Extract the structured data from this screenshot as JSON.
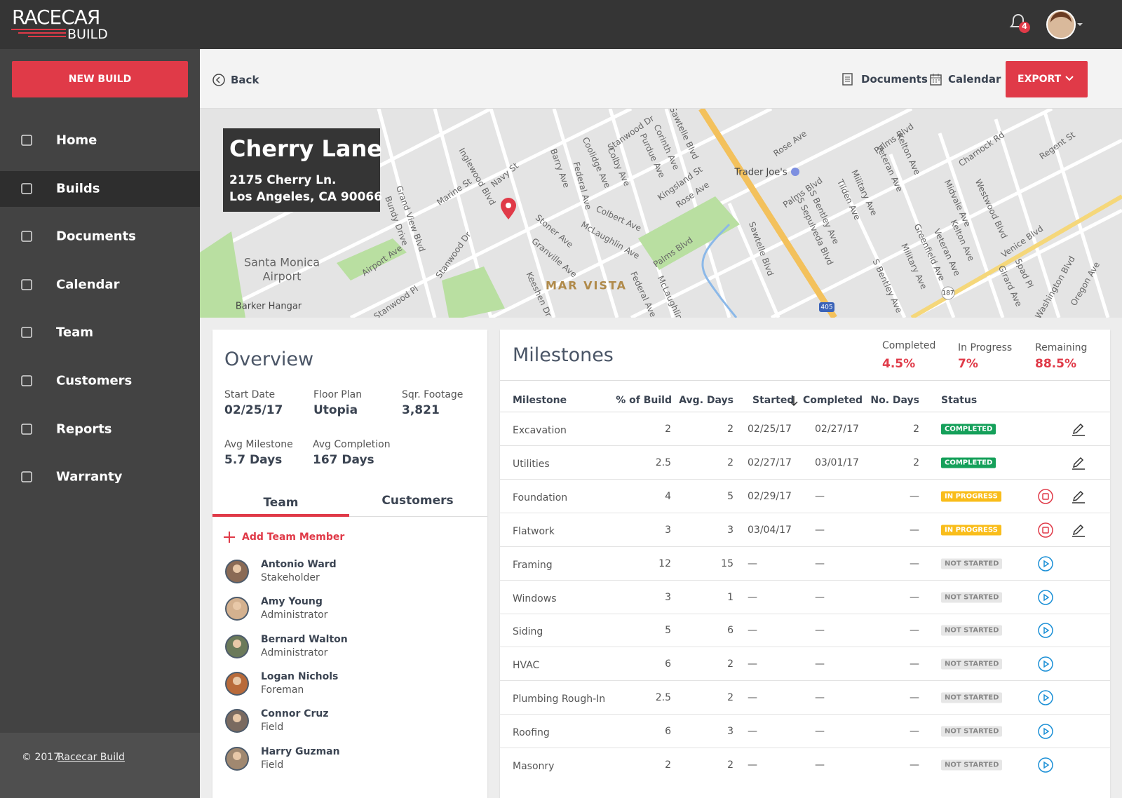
{
  "header": {
    "logo_top": "RACECAЯ",
    "logo_bottom": "BUILD",
    "notification_count": 4
  },
  "sidebar": {
    "new_build": "NEW BUILD",
    "nav": [
      {
        "label": "Home"
      },
      {
        "label": "Builds",
        "active": true
      },
      {
        "label": "Documents"
      },
      {
        "label": "Calendar"
      },
      {
        "label": "Team"
      },
      {
        "label": "Customers"
      },
      {
        "label": "Reports"
      },
      {
        "label": "Warranty"
      }
    ],
    "footer": {
      "copyright": "© 2017",
      "link": "Racecar Build"
    }
  },
  "toolbar": {
    "back": "Back",
    "documents": "Documents",
    "calendar": "Calendar",
    "export": "EXPORT"
  },
  "map": {
    "labels": [
      "Santa Monica",
      "Airport",
      "Barker Hangar",
      "MAR VISTA",
      "Trader Joe's",
      "Grand View Blvd",
      "Bundy Drive",
      "Marine St",
      "Inglewood Blvd",
      "Navy St",
      "Airport Ave",
      "Stanwood Dr",
      "Stoner Ave",
      "Granville Ave",
      "McLaughlin Ave",
      "Colbert Ave",
      "Federal Ave",
      "Barry Ave",
      "Coolidge Ave",
      "Colby Ave",
      "Purdue Ave",
      "Kingsland St",
      "Rose Ave",
      "Rose Ave",
      "Palms Blvd",
      "Sawtelle Blvd",
      "S Sepulveda Blvd",
      "S Bentley Ave",
      "Tilden Ave",
      "Military Ave",
      "Palms Blvd",
      "Palms Blvd",
      "Veteran Ave",
      "Kelton Ave",
      "Charnock Rd",
      "Regent St",
      "Midvale Ave",
      "Westwood Blvd",
      "Kelton Ave",
      "Veteran Ave",
      "Greenfield Ave",
      "Military Ave",
      "Venice Blvd",
      "S Bentley Ave",
      "Spad Pl",
      "Girard Ave",
      "Washington Blvd",
      "Oregon Ave",
      "Stanwood Pl",
      "Keeshen Dr",
      "Federal Ave",
      "McLaughlin",
      "Corinth Ave",
      "Sawtelle Blvd",
      "Stanwood Dr",
      "405",
      "187"
    ]
  },
  "project": {
    "name": "Cherry Lane",
    "address": [
      "2175 Cherry Ln.",
      "Los Angeles, CA 90066"
    ]
  },
  "overview": {
    "title": "Overview",
    "stats": [
      {
        "label": "Start Date",
        "value": "02/25/17"
      },
      {
        "label": "Floor Plan",
        "value": "Utopia"
      },
      {
        "label": "Sqr. Footage",
        "value": "3,821"
      },
      {
        "label": "Avg Milestone",
        "value": "5.7 Days"
      },
      {
        "label": "Avg Completion",
        "value": "167 Days"
      }
    ],
    "tabs": [
      "Team",
      "Customers"
    ],
    "add_member": "Add Team Member",
    "team": [
      {
        "name": "Antonio Ward",
        "role": "Stakeholder"
      },
      {
        "name": "Amy Young",
        "role": "Administrator"
      },
      {
        "name": "Bernard Walton",
        "role": "Administrator"
      },
      {
        "name": "Logan Nichols",
        "role": "Foreman"
      },
      {
        "name": "Connor Cruz",
        "role": "Field"
      },
      {
        "name": "Harry Guzman",
        "role": "Field"
      }
    ]
  },
  "milestones": {
    "title": "Milestones",
    "summary": [
      {
        "label": "Completed",
        "value": "4.5%"
      },
      {
        "label": "In Progress",
        "value": "7%"
      },
      {
        "label": "Remaining",
        "value": "88.5%"
      }
    ],
    "columns": [
      "Milestone",
      "% of Build",
      "Avg. Days",
      "Started",
      "Completed",
      "No. Days",
      "Status"
    ],
    "rows": [
      [
        "Excavation",
        2,
        2,
        "02/25/17",
        "02/27/17",
        2,
        "COMPLETED"
      ],
      [
        "Utilities",
        2.5,
        2,
        "02/27/17",
        "03/01/17",
        2,
        "COMPLETED"
      ],
      [
        "Foundation",
        4,
        5,
        "02/29/17",
        "—",
        "—",
        "IN PROGRESS"
      ],
      [
        "Flatwork",
        3,
        3,
        "03/04/17",
        "—",
        "—",
        "IN PROGRESS"
      ],
      [
        "Framing",
        12,
        15,
        "—",
        "—",
        "—",
        "NOT STARTED"
      ],
      [
        "Windows",
        3,
        1,
        "—",
        "—",
        "—",
        "NOT STARTED"
      ],
      [
        "Siding",
        5,
        6,
        "—",
        "—",
        "—",
        "NOT STARTED"
      ],
      [
        "HVAC",
        6,
        2,
        "—",
        "—",
        "—",
        "NOT STARTED"
      ],
      [
        "Plumbing Rough-In",
        2.5,
        2,
        "—",
        "—",
        "—",
        "NOT STARTED"
      ],
      [
        "Roofing",
        6,
        3,
        "—",
        "—",
        "—",
        "NOT STARTED"
      ],
      [
        "Masonry",
        2,
        2,
        "—",
        "—",
        "—",
        "NOT STARTED"
      ]
    ]
  }
}
